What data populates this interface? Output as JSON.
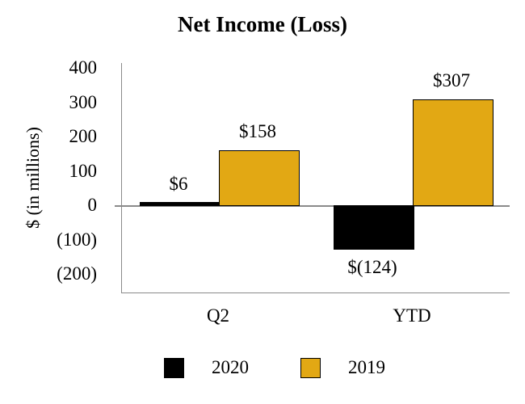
{
  "title": "Net Income (Loss)",
  "chart_data": {
    "type": "bar",
    "title": "Net Income (Loss)",
    "xlabel": "",
    "ylabel": "$ (in millions)",
    "categories": [
      "Q2",
      "YTD"
    ],
    "series": [
      {
        "name": "2020",
        "color": "#000000",
        "values": [
          6,
          -124
        ],
        "data_labels": [
          "$6",
          "$(124)"
        ]
      },
      {
        "name": "2019",
        "color": "#E2A814",
        "values": [
          158,
          307
        ],
        "data_labels": [
          "$158",
          "$307"
        ]
      }
    ],
    "y_ticks": [
      {
        "value": 400,
        "label": "400"
      },
      {
        "value": 300,
        "label": "300"
      },
      {
        "value": 200,
        "label": "200"
      },
      {
        "value": 100,
        "label": "100"
      },
      {
        "value": 0,
        "label": "0"
      },
      {
        "value": -100,
        "label": "(100)"
      },
      {
        "value": -200,
        "label": "(200)"
      }
    ],
    "ylim": [
      -252,
      416
    ],
    "grid": false,
    "zero_line": true,
    "legend_position": "bottom",
    "negative_number_format": "parentheses"
  },
  "colors": {
    "bar_2020": "#000000",
    "bar_2019": "#E2A814",
    "bar_border": "#000000",
    "axis_line": "#8A8A8A",
    "text": "#000000",
    "background": "#FFFFFF"
  }
}
